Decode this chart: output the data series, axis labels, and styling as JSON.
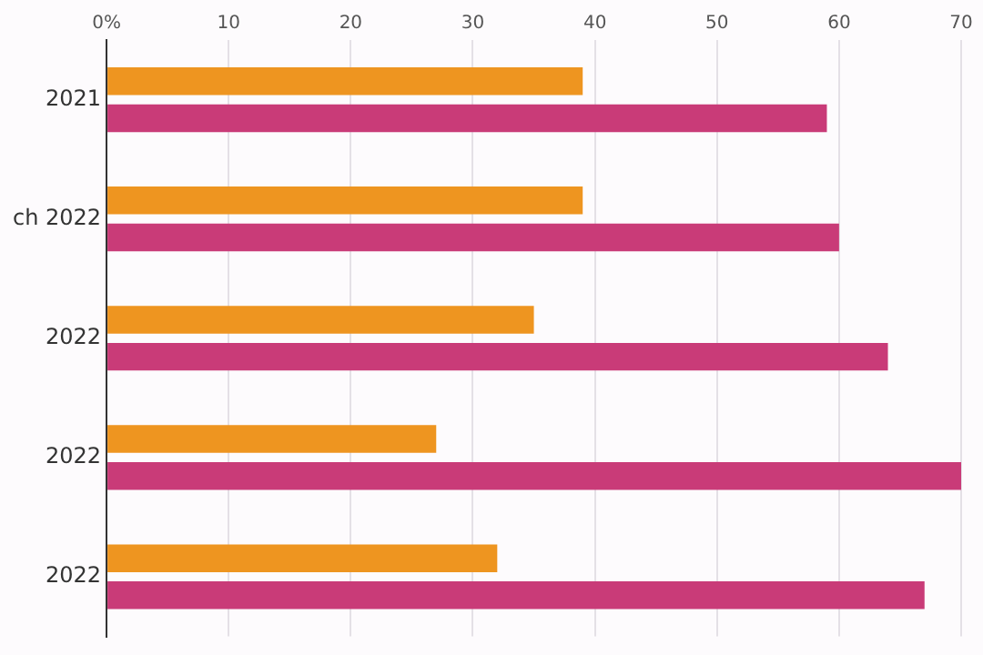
{
  "chart_data": {
    "type": "bar",
    "orientation": "horizontal",
    "categories": [
      "2021",
      "ch 2022",
      "2022",
      "2022",
      "2022"
    ],
    "series": [
      {
        "color": "#ee9520",
        "values": [
          39,
          39,
          35,
          27,
          32
        ]
      },
      {
        "color": "#c93b78",
        "values": [
          59,
          60,
          64,
          70,
          67
        ]
      }
    ],
    "xlim": [
      0,
      70
    ],
    "xticks": [
      {
        "value": 0,
        "label": "0%"
      },
      10,
      20,
      30,
      40,
      50,
      60,
      70
    ],
    "grid": "x",
    "legend": false
  }
}
